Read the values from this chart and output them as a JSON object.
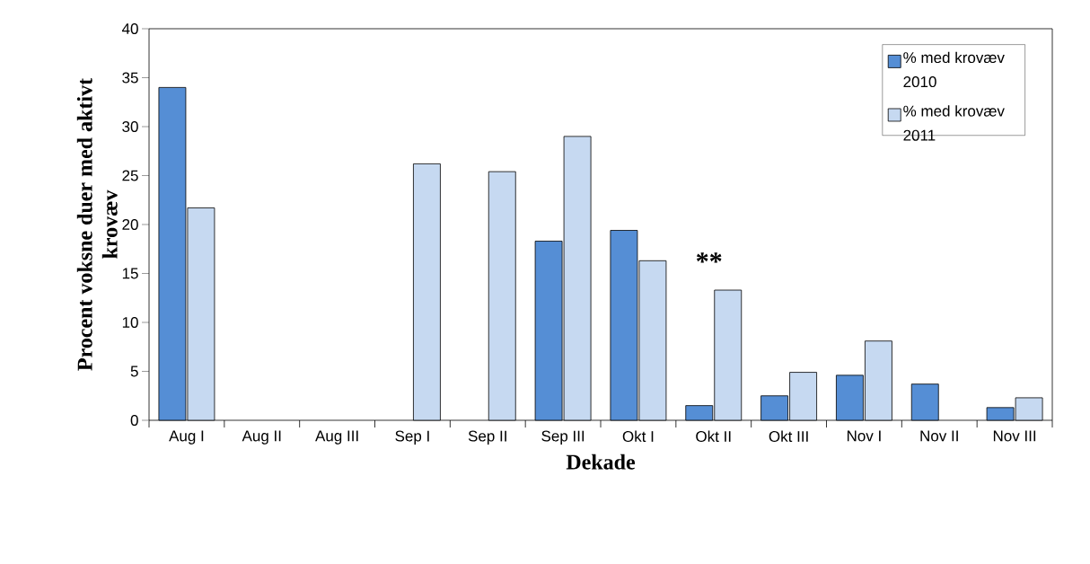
{
  "chart_data": {
    "type": "bar",
    "xlabel": "Dekade",
    "ylabel": "Procent voksne duer med aktivt krovæv",
    "categories": [
      "Aug I",
      "Aug II",
      "Aug III",
      "Sep I",
      "Sep II",
      "Sep III",
      "Okt I",
      "Okt II",
      "Okt III",
      "Nov I",
      "Nov II",
      "Nov III"
    ],
    "series": [
      {
        "name": "% med krovæv 2010",
        "color": "#558ed5",
        "values": [
          34,
          null,
          null,
          null,
          null,
          18.3,
          19.4,
          1.5,
          2.5,
          4.6,
          3.7,
          1.3
        ]
      },
      {
        "name": "% med krovæv 2011",
        "color": "#c6d9f1",
        "values": [
          21.7,
          null,
          null,
          26.2,
          25.4,
          29.0,
          16.3,
          13.3,
          4.9,
          8.1,
          null,
          2.3
        ]
      }
    ],
    "ylim": [
      0,
      40
    ],
    "yticks": [
      0,
      5,
      10,
      15,
      20,
      25,
      30,
      35,
      40
    ],
    "annotations": [
      "**"
    ],
    "legend": "top right",
    "grid": false
  }
}
